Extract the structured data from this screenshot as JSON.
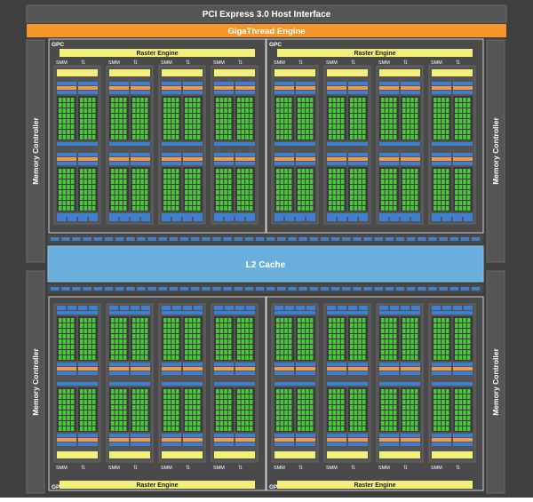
{
  "header": {
    "pcie_label": "PCI Express 3.0 Host Interface",
    "gigathread_label": "GigaThread Engine"
  },
  "memory_controller_label": "Memory Controller",
  "l2_cache_label": "L2 Cache",
  "gpc": {
    "label": "GPC",
    "raster_label": "Raster Engine",
    "smm_label": "SMM"
  },
  "colors": {
    "background": "#3f3f3f",
    "pcie": "#555555",
    "gigathread": "#f5962a",
    "raster": "#f2f07a",
    "l2": "#6aaedc",
    "core": "#49c83a",
    "sched": "#3d7fd1",
    "register": "#f09a52",
    "panel": "#545454"
  }
}
